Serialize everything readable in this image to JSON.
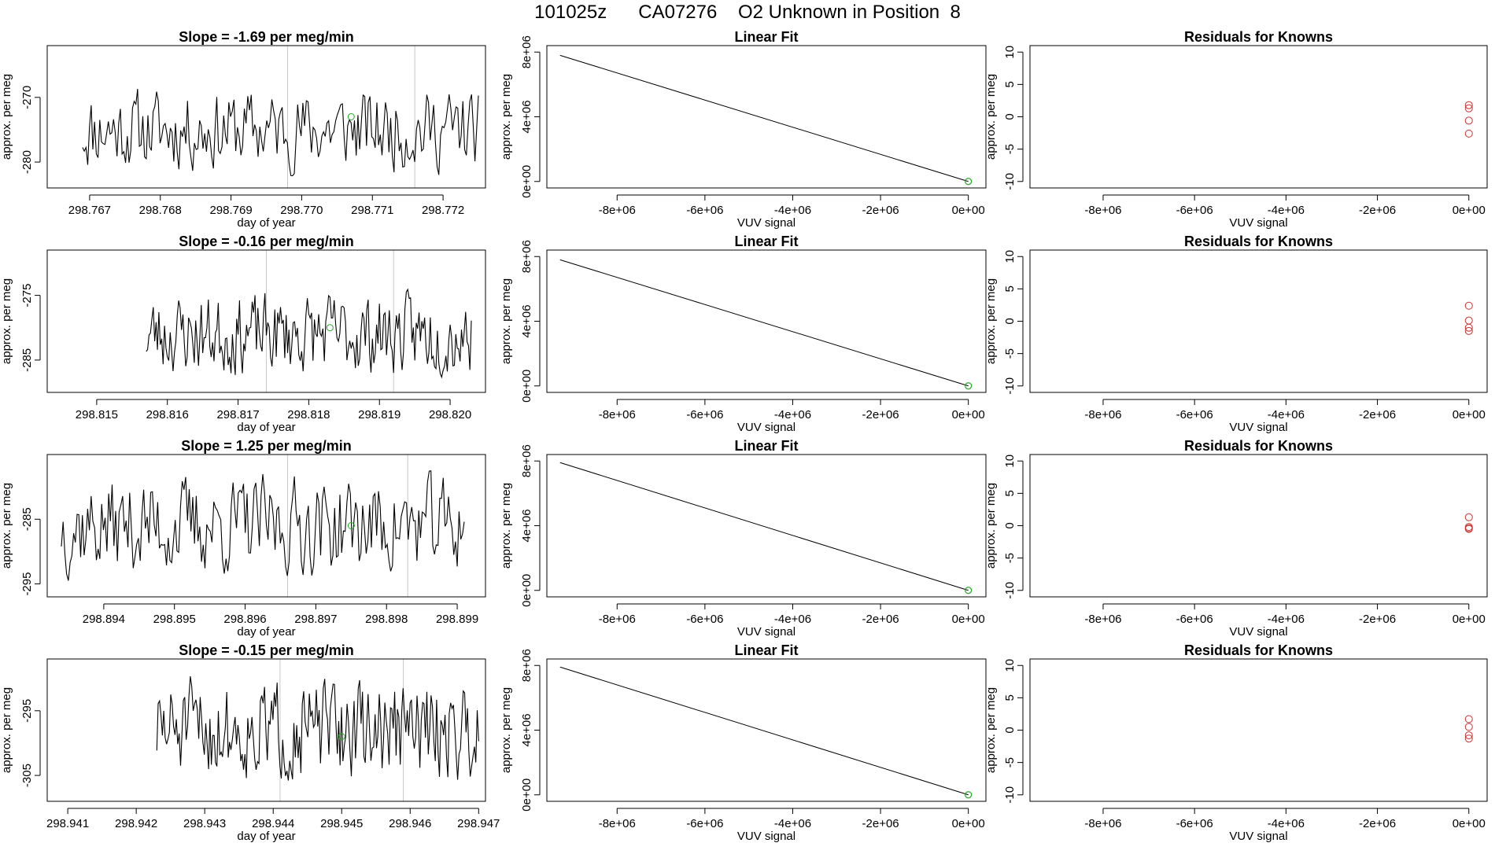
{
  "title": "101025z      CA07276    O2 Unknown in Position  8",
  "colors": {
    "trace": "#000000",
    "marker_green": "#22aa22",
    "residual_red": "#cc3333",
    "grid_gray": "#c8c8c8",
    "axis": "#000000"
  },
  "chart_data": [
    {
      "type": "line",
      "row": 1,
      "title": "Slope =  -1.69  per meg/min",
      "xlabel": "day of year",
      "ylabel": "approx. per meg",
      "xlim": [
        298.7664,
        298.7726
      ],
      "ylim": [
        -284,
        -262
      ],
      "xticks": [
        298.767,
        298.768,
        298.769,
        298.77,
        298.771,
        298.772
      ],
      "xtick_labels": [
        "298.767",
        "298.768",
        "298.769",
        "298.770",
        "298.771",
        "298.772"
      ],
      "yticks": [
        -270,
        -280
      ],
      "ytick_labels": [
        "-270",
        "-280"
      ],
      "vlines": [
        298.7698,
        298.7716
      ],
      "marker": {
        "x": 298.7707,
        "y": -273
      },
      "series_range": {
        "x_start": 298.7669,
        "x_end": 298.7725,
        "ymin": -284,
        "ymax": -266,
        "seed": 11
      }
    },
    {
      "type": "line",
      "row": 2,
      "title": "Slope =  -0.16  per meg/min",
      "xlabel": "day of year",
      "ylabel": "approx. per meg",
      "xlim": [
        298.8143,
        298.8205
      ],
      "ylim": [
        -290,
        -268
      ],
      "xticks": [
        298.815,
        298.816,
        298.817,
        298.818,
        298.819,
        298.82
      ],
      "xtick_labels": [
        "298.815",
        "298.816",
        "298.817",
        "298.818",
        "298.819",
        "298.820"
      ],
      "yticks": [
        -275,
        -285
      ],
      "ytick_labels": [
        "-275",
        "-285"
      ],
      "vlines": [
        298.8174,
        298.8192
      ],
      "marker": {
        "x": 298.8183,
        "y": -280
      },
      "series_range": {
        "x_start": 298.8157,
        "x_end": 298.8203,
        "ymin": -290,
        "ymax": -272,
        "seed": 23
      }
    },
    {
      "type": "line",
      "row": 3,
      "title": "Slope =  1.25  per meg/min",
      "xlabel": "day of year",
      "ylabel": "approx. per meg",
      "xlim": [
        298.8932,
        298.8994
      ],
      "ylim": [
        -297,
        -275
      ],
      "xticks": [
        298.894,
        298.895,
        298.896,
        298.897,
        298.898,
        298.899
      ],
      "xtick_labels": [
        "298.894",
        "298.895",
        "298.896",
        "298.897",
        "298.898",
        "298.899"
      ],
      "yticks": [
        -285,
        -295
      ],
      "ytick_labels": [
        "-285",
        "-295"
      ],
      "vlines": [
        298.8966,
        298.8983
      ],
      "marker": {
        "x": 298.8975,
        "y": -286
      },
      "series_range": {
        "x_start": 298.8934,
        "x_end": 298.8991,
        "ymin": -297,
        "ymax": -275,
        "seed": 37
      }
    },
    {
      "type": "line",
      "row": 4,
      "title": "Slope =  -0.15  per meg/min",
      "xlabel": "day of year",
      "ylabel": "approx. per meg",
      "xlim": [
        298.9407,
        298.9471
      ],
      "ylim": [
        -309,
        -287
      ],
      "xticks": [
        298.941,
        298.942,
        298.943,
        298.944,
        298.945,
        298.946,
        298.947
      ],
      "xtick_labels": [
        "298.941",
        "298.942",
        "298.943",
        "298.944",
        "298.945",
        "298.946",
        "298.947"
      ],
      "yticks": [
        -295,
        -305
      ],
      "ytick_labels": [
        "-295",
        "-305"
      ],
      "vlines": [
        298.9441,
        298.9459
      ],
      "marker": {
        "x": 298.945,
        "y": -299
      },
      "series_range": {
        "x_start": 298.9423,
        "x_end": 298.947,
        "ymin": -309,
        "ymax": -287,
        "seed": 51
      }
    },
    {
      "type": "line",
      "row": 1,
      "title": "Linear Fit",
      "xlabel": "VUV signal",
      "ylabel": "approx. per meg",
      "xlim": [
        -9600000.0,
        400000.0
      ],
      "ylim": [
        -400000.0,
        8400000.0
      ],
      "xticks": [
        -8000000.0,
        -6000000.0,
        -4000000.0,
        -2000000.0,
        0
      ],
      "xtick_labels": [
        "-8e+06",
        "-6e+06",
        "-4e+06",
        "-2e+06",
        "0e+00"
      ],
      "yticks": [
        0,
        4000000.0,
        8000000.0
      ],
      "ytick_labels": [
        "0e+00",
        "4e+06",
        "8e+06"
      ],
      "line": {
        "x": [
          -9300000.0,
          0
        ],
        "y": [
          7800000.0,
          0
        ]
      },
      "point": {
        "x": 0,
        "y": 0
      }
    },
    {
      "type": "line",
      "row": 2,
      "title": "Linear Fit",
      "xlabel": "VUV signal",
      "ylabel": "approx. per meg",
      "xlim": [
        -9600000.0,
        400000.0
      ],
      "ylim": [
        -400000.0,
        8400000.0
      ],
      "xticks": [
        -8000000.0,
        -6000000.0,
        -4000000.0,
        -2000000.0,
        0
      ],
      "xtick_labels": [
        "-8e+06",
        "-6e+06",
        "-4e+06",
        "-2e+06",
        "0e+00"
      ],
      "yticks": [
        0,
        4000000.0,
        8000000.0
      ],
      "ytick_labels": [
        "0e+00",
        "4e+06",
        "8e+06"
      ],
      "line": {
        "x": [
          -9300000.0,
          0
        ],
        "y": [
          7800000.0,
          0
        ]
      },
      "point": {
        "x": 0,
        "y": 0
      }
    },
    {
      "type": "line",
      "row": 3,
      "title": "Linear Fit",
      "xlabel": "VUV signal",
      "ylabel": "approx. per meg",
      "xlim": [
        -9600000.0,
        400000.0
      ],
      "ylim": [
        -400000.0,
        8400000.0
      ],
      "xticks": [
        -8000000.0,
        -6000000.0,
        -4000000.0,
        -2000000.0,
        0
      ],
      "xtick_labels": [
        "-8e+06",
        "-6e+06",
        "-4e+06",
        "-2e+06",
        "0e+00"
      ],
      "yticks": [
        0,
        4000000.0,
        8000000.0
      ],
      "ytick_labels": [
        "0e+00",
        "4e+06",
        "8e+06"
      ],
      "line": {
        "x": [
          -9300000.0,
          0
        ],
        "y": [
          7900000.0,
          0
        ]
      },
      "point": {
        "x": 0,
        "y": 0
      }
    },
    {
      "type": "line",
      "row": 4,
      "title": "Linear Fit",
      "xlabel": "VUV signal",
      "ylabel": "approx. per meg",
      "xlim": [
        -9600000.0,
        400000.0
      ],
      "ylim": [
        -400000.0,
        8400000.0
      ],
      "xticks": [
        -8000000.0,
        -6000000.0,
        -4000000.0,
        -2000000.0,
        0
      ],
      "xtick_labels": [
        "-8e+06",
        "-6e+06",
        "-4e+06",
        "-2e+06",
        "0e+00"
      ],
      "yticks": [
        0,
        4000000.0,
        8000000.0
      ],
      "ytick_labels": [
        "0e+00",
        "4e+06",
        "8e+06"
      ],
      "line": {
        "x": [
          -9300000.0,
          0
        ],
        "y": [
          7900000.0,
          0
        ]
      },
      "point": {
        "x": 0,
        "y": 0
      }
    },
    {
      "type": "scatter",
      "row": 1,
      "title": "Residuals for Knowns",
      "xlabel": "VUV signal",
      "ylabel": "approx. per meg",
      "xlim": [
        -9600000.0,
        400000.0
      ],
      "ylim": [
        -11,
        11
      ],
      "xticks": [
        -8000000.0,
        -6000000.0,
        -4000000.0,
        -2000000.0,
        0
      ],
      "xtick_labels": [
        "-8e+06",
        "-6e+06",
        "-4e+06",
        "-2e+06",
        "0e+00"
      ],
      "yticks": [
        -10,
        -5,
        0,
        5,
        10
      ],
      "ytick_labels": [
        "-10",
        "-5",
        "0",
        "5",
        "10"
      ],
      "points": [
        {
          "x": 0,
          "y": 1.8
        },
        {
          "x": 0,
          "y": 1.3
        },
        {
          "x": 0,
          "y": -0.6
        },
        {
          "x": 0,
          "y": -2.6
        }
      ]
    },
    {
      "type": "scatter",
      "row": 2,
      "title": "Residuals for Knowns",
      "xlabel": "VUV signal",
      "ylabel": "approx. per meg",
      "xlim": [
        -9600000.0,
        400000.0
      ],
      "ylim": [
        -11,
        11
      ],
      "xticks": [
        -8000000.0,
        -6000000.0,
        -4000000.0,
        -2000000.0,
        0
      ],
      "xtick_labels": [
        "-8e+06",
        "-6e+06",
        "-4e+06",
        "-2e+06",
        "0e+00"
      ],
      "yticks": [
        -10,
        -5,
        0,
        5,
        10
      ],
      "ytick_labels": [
        "-10",
        "-5",
        "0",
        "5",
        "10"
      ],
      "points": [
        {
          "x": 0,
          "y": 2.4
        },
        {
          "x": 0,
          "y": 0.1
        },
        {
          "x": 0,
          "y": -1.0
        },
        {
          "x": 0,
          "y": -1.5
        }
      ]
    },
    {
      "type": "scatter",
      "row": 3,
      "title": "Residuals for Knowns",
      "xlabel": "VUV signal",
      "ylabel": "approx. per meg",
      "xlim": [
        -9600000.0,
        400000.0
      ],
      "ylim": [
        -11,
        11
      ],
      "xticks": [
        -8000000.0,
        -6000000.0,
        -4000000.0,
        -2000000.0,
        0
      ],
      "xtick_labels": [
        "-8e+06",
        "-6e+06",
        "-4e+06",
        "-2e+06",
        "0e+00"
      ],
      "yticks": [
        -10,
        -5,
        0,
        5,
        10
      ],
      "ytick_labels": [
        "-10",
        "-5",
        "0",
        "5",
        "10"
      ],
      "points": [
        {
          "x": 0,
          "y": 1.3
        },
        {
          "x": 0,
          "y": -0.2
        },
        {
          "x": 0,
          "y": -0.4
        },
        {
          "x": 0,
          "y": -0.5
        }
      ]
    },
    {
      "type": "scatter",
      "row": 4,
      "title": "Residuals for Knowns",
      "xlabel": "VUV signal",
      "ylabel": "approx. per meg",
      "xlim": [
        -9600000.0,
        400000.0
      ],
      "ylim": [
        -11,
        11
      ],
      "xticks": [
        -8000000.0,
        -6000000.0,
        -4000000.0,
        -2000000.0,
        0
      ],
      "xtick_labels": [
        "-8e+06",
        "-6e+06",
        "-4e+06",
        "-2e+06",
        "0e+00"
      ],
      "yticks": [
        -10,
        -5,
        0,
        5,
        10
      ],
      "ytick_labels": [
        "-10",
        "-5",
        "0",
        "5",
        "10"
      ],
      "points": [
        {
          "x": 0,
          "y": 1.7
        },
        {
          "x": 0,
          "y": 0.5
        },
        {
          "x": 0,
          "y": -0.8
        },
        {
          "x": 0,
          "y": -1.3
        }
      ]
    }
  ]
}
